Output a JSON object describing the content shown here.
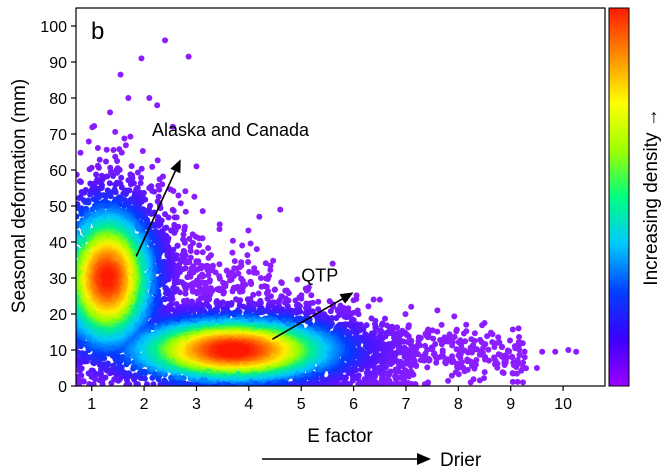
{
  "chart_data": {
    "type": "scatter",
    "panel_label": "b",
    "xlabel": "E factor",
    "ylabel": "Seasonal deformation (mm)",
    "xlim": [
      0.7,
      10.8
    ],
    "ylim": [
      0,
      105
    ],
    "xticks": [
      1,
      2,
      3,
      4,
      5,
      6,
      7,
      8,
      9,
      10
    ],
    "yticks": [
      0,
      10,
      20,
      30,
      40,
      50,
      60,
      70,
      80,
      90,
      100
    ],
    "colorbar_label": "Increasing density →",
    "bottom_annotation": "Drier",
    "clusters": [
      {
        "center_x": 1.3,
        "center_y": 30,
        "peak_density": "high"
      },
      {
        "center_x": 3.7,
        "center_y": 10,
        "peak_density": "high"
      }
    ],
    "outlier_points": [
      [
        2.4,
        96
      ],
      [
        2.85,
        91.5
      ],
      [
        1.95,
        91
      ],
      [
        1.55,
        86.5
      ],
      [
        2.1,
        80
      ],
      [
        1.7,
        80
      ],
      [
        2.25,
        78
      ],
      [
        1.35,
        76
      ],
      [
        2.55,
        72
      ],
      [
        3.0,
        61
      ],
      [
        4.6,
        49
      ],
      [
        4.2,
        47
      ],
      [
        5.6,
        34
      ],
      [
        6.5,
        24
      ],
      [
        7.1,
        22
      ],
      [
        7.6,
        21
      ],
      [
        8.15,
        17
      ],
      [
        8.5,
        17.5
      ],
      [
        9.15,
        16
      ],
      [
        9.6,
        9.5
      ],
      [
        9.85,
        9.5
      ],
      [
        10.1,
        10
      ],
      [
        10.25,
        9.5
      ],
      [
        8.9,
        8.5
      ],
      [
        9.05,
        6.5
      ],
      [
        9.5,
        5
      ],
      [
        8.7,
        6
      ],
      [
        7.9,
        7
      ]
    ],
    "annotations": [
      {
        "text": "Alaska and Canada",
        "label_x": 2.15,
        "label_y": 69.5,
        "arrow_from": [
          1.85,
          36
        ],
        "arrow_to": [
          2.7,
          63
        ]
      },
      {
        "text": "QTP",
        "label_x": 5.0,
        "label_y": 29,
        "arrow_from": [
          4.45,
          13
        ],
        "arrow_to": [
          6.0,
          26
        ]
      }
    ]
  },
  "colorbar_colors": [
    "#9b00ff",
    "#3b00ff",
    "#0040ff",
    "#00c8ff",
    "#00ff80",
    "#a0ff00",
    "#ffff00",
    "#ff8c00",
    "#ff1a00"
  ],
  "outlier_color": "#8b1cff"
}
